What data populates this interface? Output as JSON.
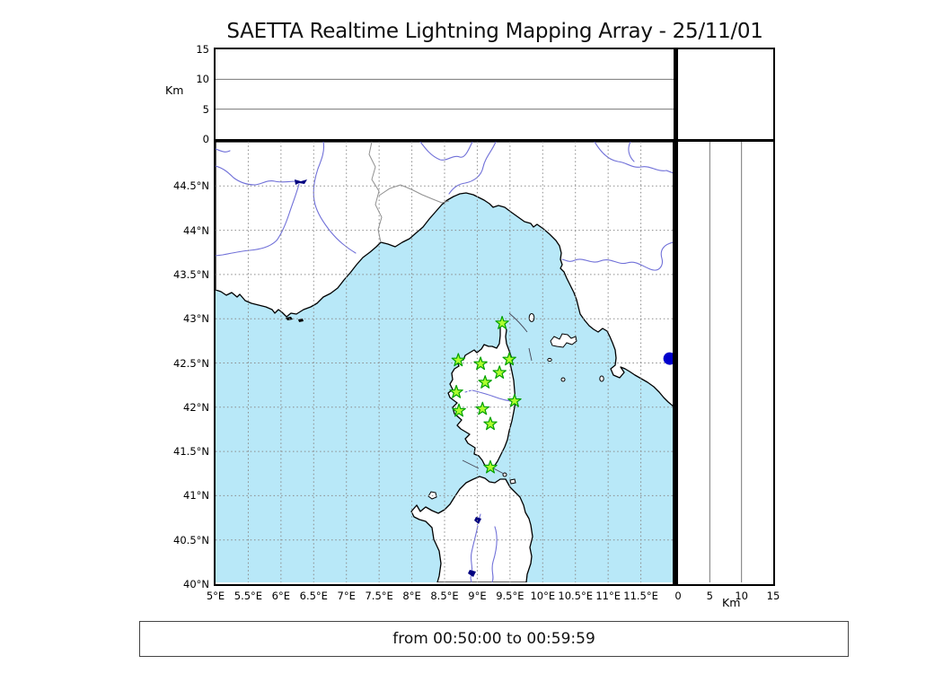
{
  "title": "SAETTA Realtime Lightning Mapping Array - 25/11/01",
  "footer": {
    "time_range": "from 00:50:00 to 00:59:59"
  },
  "altitude_axis": {
    "label": "Km",
    "max": 15,
    "ticks": [
      {
        "v": 0,
        "label": "0"
      },
      {
        "v": 5,
        "label": "5"
      },
      {
        "v": 10,
        "label": "10"
      },
      {
        "v": 15,
        "label": "15"
      }
    ],
    "gridlines": [
      5,
      10
    ]
  },
  "map": {
    "lon_min": 5,
    "lon_max": 12,
    "lat_min": 40,
    "lat_max": 45,
    "grid_step": 0.5,
    "lon_ticks": [
      {
        "v": 5,
        "label": "5°E"
      },
      {
        "v": 5.5,
        "label": "5.5°E"
      },
      {
        "v": 6,
        "label": "6°E"
      },
      {
        "v": 6.5,
        "label": "6.5°E"
      },
      {
        "v": 7,
        "label": "7°E"
      },
      {
        "v": 7.5,
        "label": "7.5°E"
      },
      {
        "v": 8,
        "label": "8°E"
      },
      {
        "v": 8.5,
        "label": "8.5°E"
      },
      {
        "v": 9,
        "label": "9°E"
      },
      {
        "v": 9.5,
        "label": "9.5°E"
      },
      {
        "v": 10,
        "label": "10°E"
      },
      {
        "v": 10.5,
        "label": "10.5°E"
      },
      {
        "v": 11,
        "label": "11°E"
      },
      {
        "v": 11.5,
        "label": "11.5°E"
      }
    ],
    "lat_ticks": [
      {
        "v": 40,
        "label": "40°N"
      },
      {
        "v": 40.5,
        "label": "40.5°N"
      },
      {
        "v": 41,
        "label": "41°N"
      },
      {
        "v": 41.5,
        "label": "41.5°N"
      },
      {
        "v": 42,
        "label": "42°N"
      },
      {
        "v": 42.5,
        "label": "42.5°N"
      },
      {
        "v": 43,
        "label": "43°N"
      },
      {
        "v": 43.5,
        "label": "43.5°N"
      },
      {
        "v": 44,
        "label": "44°N"
      },
      {
        "v": 44.5,
        "label": "44.5°N"
      }
    ],
    "colors": {
      "sea": "#b8e8f8",
      "land": "#ffffff",
      "coastline": "#000000",
      "river": "#7070d8",
      "country_border": "#909090",
      "grid": "#8a8a8a",
      "station_fill": "#adff2f",
      "station_stroke": "#00a000",
      "source_point": "#0000cc",
      "lake": "#000080"
    },
    "stations": [
      {
        "lon": 9.38,
        "lat": 42.95
      },
      {
        "lon": 8.71,
        "lat": 42.53
      },
      {
        "lon": 9.05,
        "lat": 42.49
      },
      {
        "lon": 9.49,
        "lat": 42.54
      },
      {
        "lon": 9.34,
        "lat": 42.39
      },
      {
        "lon": 9.12,
        "lat": 42.28
      },
      {
        "lon": 8.68,
        "lat": 42.17
      },
      {
        "lon": 9.57,
        "lat": 42.07
      },
      {
        "lon": 8.72,
        "lat": 41.96
      },
      {
        "lon": 9.08,
        "lat": 41.98
      },
      {
        "lon": 9.2,
        "lat": 41.81
      },
      {
        "lon": 9.2,
        "lat": 41.32
      }
    ],
    "source_points": [
      {
        "lon": 11.94,
        "lat": 42.55
      }
    ]
  },
  "chart_data": {
    "type": "scatter",
    "title": "SAETTA Realtime Lightning Mapping Array - 25/11/01",
    "time_window": "from 00:50:00 to 00:59:59",
    "panels": [
      {
        "name": "altitude_vs_longitude",
        "position": "top",
        "ylabel": "Km",
        "ylim": [
          0,
          15
        ],
        "yticks": [
          0,
          5,
          10,
          15
        ],
        "grid": true,
        "points": []
      },
      {
        "name": "map",
        "position": "center",
        "xlim": [
          5,
          12
        ],
        "ylim": [
          40,
          45
        ],
        "xticks": [
          5,
          5.5,
          6,
          6.5,
          7,
          7.5,
          8,
          8.5,
          9,
          9.5,
          10,
          10.5,
          11,
          11.5
        ],
        "yticks": [
          40,
          40.5,
          41,
          41.5,
          42,
          42.5,
          43,
          43.5,
          44,
          44.5
        ],
        "grid": true,
        "series": [
          {
            "name": "lma_stations",
            "marker": "star",
            "color": "#adff2f",
            "points": [
              {
                "lon": 9.38,
                "lat": 42.95
              },
              {
                "lon": 8.71,
                "lat": 42.53
              },
              {
                "lon": 9.05,
                "lat": 42.49
              },
              {
                "lon": 9.49,
                "lat": 42.54
              },
              {
                "lon": 9.34,
                "lat": 42.39
              },
              {
                "lon": 9.12,
                "lat": 42.28
              },
              {
                "lon": 8.68,
                "lat": 42.17
              },
              {
                "lon": 9.57,
                "lat": 42.07
              },
              {
                "lon": 8.72,
                "lat": 41.96
              },
              {
                "lon": 9.08,
                "lat": 41.98
              },
              {
                "lon": 9.2,
                "lat": 41.81
              },
              {
                "lon": 9.2,
                "lat": 41.32
              }
            ]
          },
          {
            "name": "lightning_sources",
            "marker": "circle",
            "color": "#0000cc",
            "points": [
              {
                "lon": 11.94,
                "lat": 42.55
              }
            ]
          }
        ]
      },
      {
        "name": "altitude_vs_latitude",
        "position": "right",
        "xlabel": "Km",
        "xlim": [
          0,
          15
        ],
        "xticks": [
          0,
          5,
          10,
          15
        ],
        "grid": true,
        "points": []
      },
      {
        "name": "altitude_histogram",
        "position": "top-right",
        "points": []
      }
    ]
  }
}
